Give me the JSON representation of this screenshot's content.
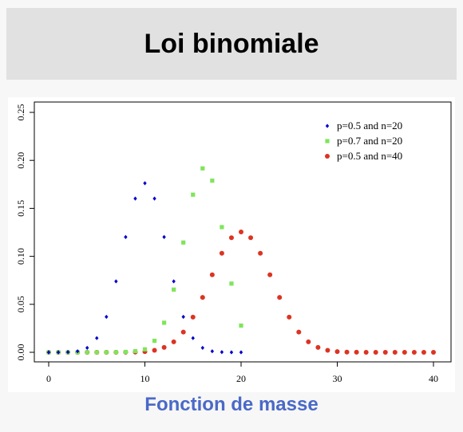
{
  "header": {
    "title": "Loi binomiale"
  },
  "caption": "Fonction de masse",
  "chart_data": {
    "type": "scatter",
    "title": "",
    "xlabel": "",
    "ylabel": "",
    "xlim": [
      0,
      40
    ],
    "ylim": [
      0,
      0.25
    ],
    "x_ticks": [
      "0",
      "10",
      "20",
      "30",
      "40"
    ],
    "y_ticks": [
      "0.00",
      "0.05",
      "0.10",
      "0.15",
      "0.20",
      "0.25"
    ],
    "legend_position": "top-right",
    "series": [
      {
        "name": "p=0.5 and n=20",
        "color": "#0000cc",
        "marker": "diamond",
        "x": [
          0,
          1,
          2,
          3,
          4,
          5,
          6,
          7,
          8,
          9,
          10,
          11,
          12,
          13,
          14,
          15,
          16,
          17,
          18,
          19,
          20
        ],
        "values": [
          1e-06,
          1.9e-05,
          0.000181,
          0.001087,
          0.004621,
          0.014786,
          0.036964,
          0.073929,
          0.120134,
          0.160179,
          0.176197,
          0.160179,
          0.120134,
          0.073929,
          0.036964,
          0.014786,
          0.004621,
          0.001087,
          0.000181,
          1.9e-05,
          1e-06
        ]
      },
      {
        "name": "p=0.7 and n=20",
        "color": "#7fe55a",
        "marker": "square",
        "x": [
          0,
          1,
          2,
          3,
          4,
          5,
          6,
          7,
          8,
          9,
          10,
          11,
          12,
          13,
          14,
          15,
          16,
          17,
          18,
          19,
          20
        ],
        "values": [
          0,
          0,
          0,
          0,
          1e-06,
          4e-06,
          2.2e-05,
          0.000102,
          0.000386,
          0.001201,
          0.003082,
          0.012007,
          0.030817,
          0.06537,
          0.114397,
          0.164262,
          0.191639,
          0.178863,
          0.130421,
          0.071604,
          0.027846
        ]
      },
      {
        "name": "p=0.5 and n=40",
        "color": "#dd3322",
        "marker": "circle",
        "x": [
          0,
          1,
          2,
          3,
          4,
          5,
          6,
          7,
          8,
          9,
          10,
          11,
          12,
          13,
          14,
          15,
          16,
          17,
          18,
          19,
          20,
          21,
          22,
          23,
          24,
          25,
          26,
          27,
          28,
          29,
          30,
          31,
          32,
          33,
          34,
          35,
          36,
          37,
          38,
          39,
          40
        ],
        "values": [
          0,
          0,
          0,
          0,
          0,
          0,
          0,
          1.7e-05,
          7e-05,
          0.000249,
          0.000771,
          0.002103,
          0.005081,
          0.010944,
          0.021109,
          0.0366,
          0.057189,
          0.080736,
          0.103162,
          0.119434,
          0.125371,
          0.119434,
          0.103162,
          0.080736,
          0.057189,
          0.0366,
          0.021109,
          0.010944,
          0.005081,
          0.002103,
          0.000771,
          0.000249,
          7e-05,
          1.7e-05,
          0,
          0,
          0,
          0,
          0,
          0,
          0
        ]
      }
    ]
  }
}
